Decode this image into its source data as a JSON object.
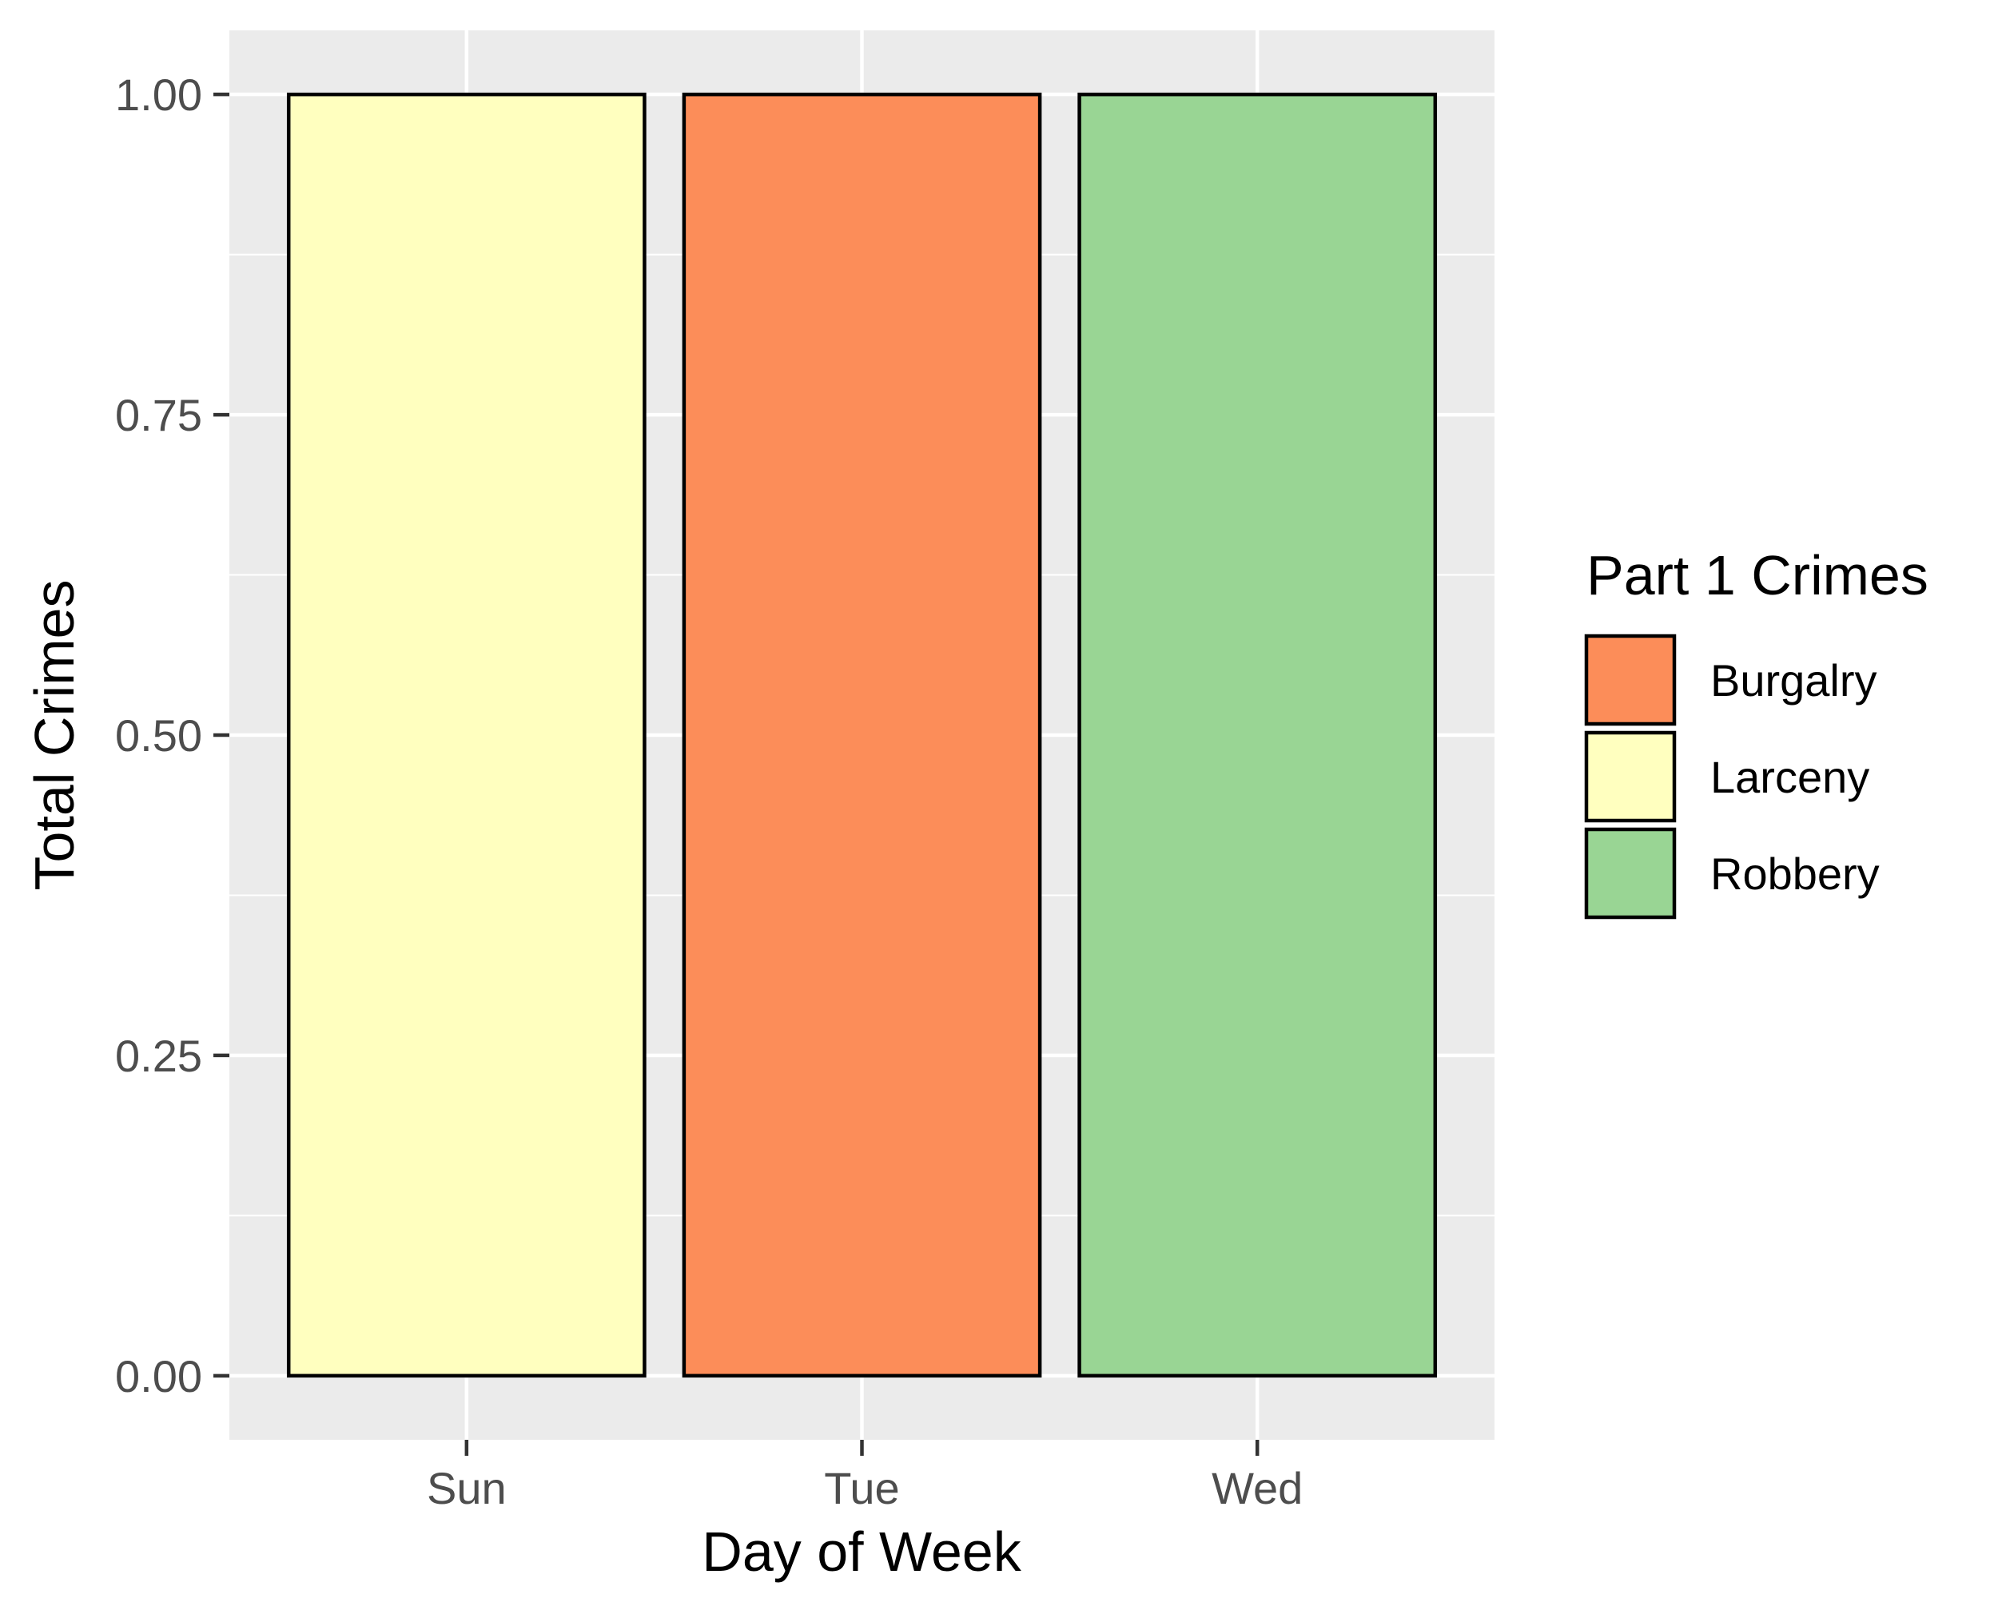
{
  "chart_data": {
    "type": "bar",
    "title": "",
    "xlabel": "Day of Week",
    "ylabel": "Total Crimes",
    "categories": [
      "Sun",
      "Tue",
      "Wed"
    ],
    "values": [
      1,
      1,
      1
    ],
    "fill_group": [
      "Larceny",
      "Burgalry",
      "Robbery"
    ],
    "ylim": [
      -0.05,
      1.05
    ],
    "y_ticks": [
      "0.00",
      "0.25",
      "0.50",
      "0.75",
      "1.00"
    ],
    "grid": true,
    "legend": {
      "title": "Part 1 Crimes",
      "position": "right",
      "entries": [
        {
          "label": "Burgalry",
          "color": "#fc8d59"
        },
        {
          "label": "Larceny",
          "color": "#ffffbf"
        },
        {
          "label": "Robbery",
          "color": "#99d594"
        }
      ]
    },
    "colors": {
      "panel_background": "#ebebeb",
      "grid": "#ffffff",
      "bar_outline": "#000000"
    }
  }
}
